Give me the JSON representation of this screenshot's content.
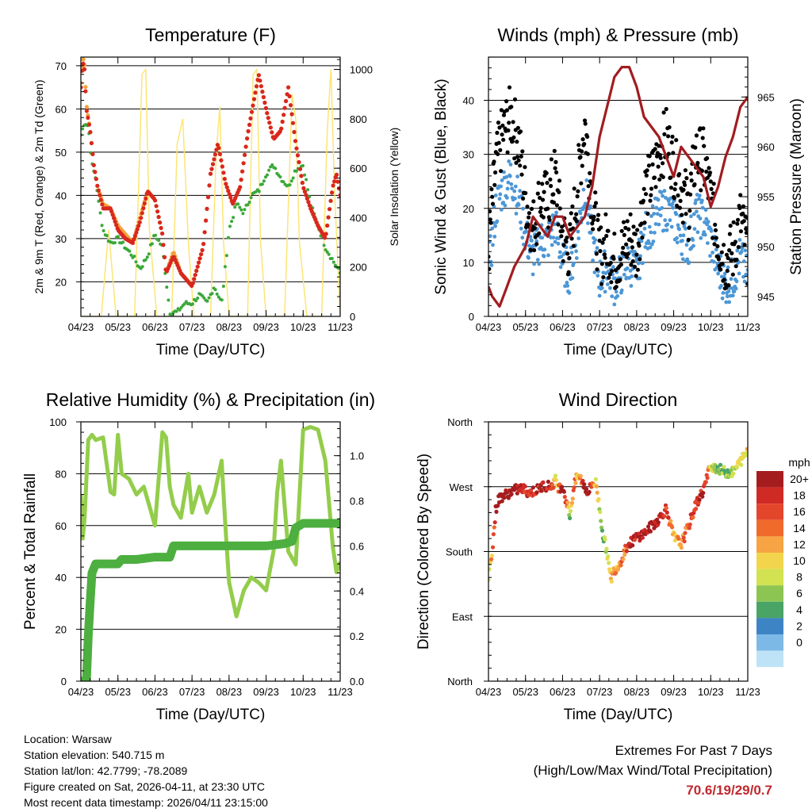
{
  "colors": {
    "red": "#d8281e",
    "orange": "#f2a23a",
    "green": "#3aa838",
    "yellow": "#fde575",
    "blue": "#4c97d6",
    "black": "#000000",
    "maroon": "#a11d21",
    "rh": "#93cd4b",
    "precip": "#4caf3f"
  },
  "info": {
    "location": "Location: Warsaw",
    "elevation": "Station elevation: 540.715 m",
    "latlon": "Station lat/lon: 42.7799; -78.2089",
    "created": "Figure created on Sat, 2026-04-11, at 23:30 UTC",
    "recent": "Most recent data timestamp: 2026/04/11 23:15:00"
  },
  "extremes": {
    "title": "Extremes For Past 7 Days",
    "subtitle": "(High/Low/Max Wind/Total Precipitation)",
    "values": "70.6/19/29/0.7"
  },
  "chart_data": [
    {
      "type": "line",
      "title": "Temperature (F)",
      "xlabel": "Time (Day/UTC)",
      "ylabel": "2m & 9m T (Red, Orange) & 2m Td (Green)",
      "ylabel_right": "Solar Insolation (Yellow)",
      "x_ticks": [
        "04/23",
        "05/23",
        "06/23",
        "07/23",
        "08/23",
        "09/23",
        "10/23",
        "11/23"
      ],
      "xlim": [
        0,
        7
      ],
      "ylim": [
        12,
        72
      ],
      "y_ticks": [
        "20",
        "30",
        "40",
        "50",
        "60",
        "70"
      ],
      "y_tick_values": [
        20,
        30,
        40,
        50,
        60,
        70
      ],
      "y2lim": [
        0,
        1050
      ],
      "y2_ticks": [
        "0",
        "200",
        "400",
        "600",
        "800",
        "1000"
      ],
      "y2_tick_values": [
        0,
        200,
        400,
        600,
        800,
        1000
      ],
      "series": [
        {
          "name": "2m T",
          "color": "red",
          "x": [
            0,
            0.05,
            0.1,
            0.15,
            0.25,
            0.35,
            0.45,
            0.6,
            0.8,
            1.0,
            1.2,
            1.4,
            1.6,
            1.8,
            2.0,
            2.2,
            2.3,
            2.5,
            2.7,
            3.0,
            3.3,
            3.5,
            3.7,
            3.9,
            4.1,
            4.3,
            4.5,
            4.8,
            5.0,
            5.2,
            5.4,
            5.6,
            5.8,
            6.0,
            6.2,
            6.4,
            6.6,
            6.8,
            6.9,
            7.0
          ],
          "y": [
            65,
            71,
            69,
            60,
            55,
            47,
            42,
            37,
            37,
            32,
            30,
            29,
            34,
            41,
            39,
            31,
            22,
            26,
            22,
            19,
            28,
            45,
            52,
            43,
            38,
            42,
            54,
            68,
            60,
            53,
            55,
            65,
            52,
            42,
            37,
            33,
            30,
            42,
            45,
            40
          ]
        },
        {
          "name": "9m T",
          "color": "orange",
          "x": [
            0,
            0.05,
            0.1,
            0.15,
            0.25,
            0.35,
            0.45,
            0.6,
            0.8,
            1.0,
            1.2,
            1.4,
            1.6,
            1.8,
            2.0,
            2.2,
            2.3,
            2.5,
            2.7,
            3.0,
            3.3,
            3.5,
            3.7,
            3.9,
            4.1,
            4.3,
            4.5,
            4.8,
            5.0,
            5.2,
            5.4,
            5.6,
            5.8,
            6.0,
            6.2,
            6.4,
            6.6,
            6.8,
            6.9,
            7.0
          ],
          "y": [
            66,
            72,
            70,
            61,
            55,
            47,
            42,
            38,
            37,
            33,
            31,
            29,
            35,
            41,
            39,
            31,
            22,
            27,
            22,
            19,
            28,
            45,
            52,
            43,
            38,
            42,
            54,
            68,
            60,
            53,
            55,
            65,
            52,
            42,
            37,
            33,
            30,
            42,
            45,
            40
          ]
        },
        {
          "name": "2m Td",
          "color": "green",
          "x": [
            0,
            0.1,
            0.2,
            0.3,
            0.4,
            0.5,
            0.6,
            0.8,
            1.0,
            1.2,
            1.4,
            1.6,
            1.8,
            2.0,
            2.2,
            2.4,
            2.6,
            2.8,
            3.0,
            3.2,
            3.4,
            3.6,
            3.8,
            4.0,
            4.2,
            4.4,
            4.6,
            4.8,
            5.0,
            5.2,
            5.4,
            5.6,
            5.8,
            6.0,
            6.2,
            6.4,
            6.6,
            6.8,
            7.0
          ],
          "y": [
            54,
            57,
            56,
            47,
            44,
            37,
            32,
            29,
            30,
            28,
            26,
            23,
            26,
            31,
            28,
            13,
            13,
            15,
            15,
            17,
            15,
            19,
            15,
            32,
            38,
            36,
            40,
            41,
            45,
            47,
            44,
            42,
            46,
            47,
            38,
            33,
            28,
            25,
            22
          ]
        },
        {
          "name": "Solar Insolation",
          "color": "yellow",
          "axis": "right",
          "x": [
            0,
            0.3,
            0.55,
            0.75,
            0.95,
            1.1,
            1.45,
            1.65,
            1.75,
            1.85,
            2.05,
            2.45,
            2.6,
            2.75,
            2.9,
            3.05,
            3.5,
            3.65,
            3.75,
            3.85,
            4.0,
            4.5,
            4.65,
            4.75,
            4.85,
            5.0,
            5.5,
            5.7,
            5.8,
            5.9,
            6.1,
            6.5,
            6.65,
            6.75,
            6.85,
            7.0
          ],
          "y": [
            0,
            0,
            0,
            350,
            0,
            0,
            0,
            980,
            1000,
            350,
            0,
            0,
            700,
            800,
            300,
            0,
            0,
            650,
            850,
            300,
            0,
            0,
            980,
            1000,
            300,
            0,
            0,
            900,
            800,
            300,
            0,
            0,
            750,
            1000,
            500,
            0
          ]
        }
      ]
    },
    {
      "type": "scatter",
      "title": "Winds (mph) & Pressure (mb)",
      "xlabel": "Time (Day/UTC)",
      "ylabel": "Sonic Wind & Gust (Blue, Black)",
      "ylabel_right": "Station Pressure (Maroon)",
      "x_ticks": [
        "04/23",
        "05/23",
        "06/23",
        "07/23",
        "08/23",
        "09/23",
        "10/23",
        "11/23"
      ],
      "xlim": [
        0,
        7
      ],
      "ylim": [
        0,
        48
      ],
      "y_ticks": [
        "0",
        "10",
        "20",
        "30",
        "40"
      ],
      "y_tick_values": [
        0,
        10,
        20,
        30,
        40
      ],
      "y2lim": [
        943,
        969
      ],
      "y2_ticks": [
        "945",
        "950",
        "955",
        "960",
        "965"
      ],
      "y2_tick_values": [
        945,
        950,
        955,
        960,
        965
      ],
      "series": [
        {
          "name": "Gust",
          "color": "black",
          "x": [
            0,
            0.2,
            0.4,
            0.6,
            0.8,
            1.0,
            1.2,
            1.4,
            1.6,
            1.8,
            2.0,
            2.2,
            2.4,
            2.6,
            2.8,
            3.0,
            3.2,
            3.4,
            3.6,
            3.8,
            4.0,
            4.2,
            4.4,
            4.6,
            4.8,
            5.0,
            5.2,
            5.4,
            5.6,
            5.8,
            6.0,
            6.2,
            6.4,
            6.6,
            6.8,
            7.0
          ],
          "y": [
            12,
            28,
            34,
            37,
            33,
            22,
            16,
            22,
            21,
            26,
            15,
            12,
            24,
            36,
            22,
            11,
            14,
            10,
            12,
            15,
            12,
            23,
            25,
            30,
            33,
            28,
            24,
            20,
            30,
            29,
            22,
            14,
            10,
            12,
            18,
            12
          ]
        },
        {
          "name": "Sonic Wind",
          "color": "blue",
          "x": [
            0,
            0.2,
            0.4,
            0.6,
            0.8,
            1.0,
            1.2,
            1.4,
            1.6,
            1.8,
            2.0,
            2.2,
            2.4,
            2.6,
            2.8,
            3.0,
            3.2,
            3.4,
            3.6,
            3.8,
            4.0,
            4.2,
            4.4,
            4.6,
            4.8,
            5.0,
            5.2,
            5.4,
            5.6,
            5.8,
            6.0,
            6.2,
            6.4,
            6.6,
            6.8,
            7.0
          ],
          "y": [
            8,
            20,
            24,
            26,
            22,
            15,
            11,
            14,
            14,
            17,
            10,
            8,
            15,
            24,
            14,
            7,
            9,
            6,
            8,
            10,
            8,
            15,
            17,
            19,
            20,
            18,
            15,
            13,
            19,
            18,
            14,
            9,
            6,
            7,
            11,
            7
          ]
        },
        {
          "name": "Station Pressure",
          "color": "maroon",
          "axis": "right",
          "x": [
            0,
            0.1,
            0.3,
            0.5,
            0.7,
            1.0,
            1.2,
            1.4,
            1.6,
            1.8,
            2.0,
            2.2,
            2.4,
            2.6,
            2.8,
            3.0,
            3.2,
            3.4,
            3.6,
            3.8,
            4.0,
            4.2,
            4.4,
            4.6,
            4.8,
            5.0,
            5.2,
            5.4,
            5.6,
            5.8,
            6.0,
            6.2,
            6.4,
            6.6,
            6.8,
            7.0
          ],
          "y": [
            946,
            945,
            944,
            946,
            948,
            950,
            953,
            952,
            951,
            953,
            953,
            951,
            952,
            953,
            956,
            961,
            964,
            967,
            968,
            968,
            966,
            963,
            962,
            961,
            959,
            957,
            960,
            959,
            958,
            957,
            954,
            956,
            959,
            961,
            964,
            965
          ]
        }
      ]
    },
    {
      "type": "line",
      "title": "Relative Humidity (%) & Precipitation (in)",
      "xlabel": "Time (Day/UTC)",
      "ylabel": "Percent & Total Rainfall",
      "x_ticks": [
        "04/23",
        "05/23",
        "06/23",
        "07/23",
        "08/23",
        "09/23",
        "10/23",
        "11/23"
      ],
      "xlim": [
        0,
        7
      ],
      "ylim": [
        0,
        100
      ],
      "y_ticks": [
        "0",
        "20",
        "40",
        "60",
        "80",
        "100"
      ],
      "y_tick_values": [
        0,
        20,
        40,
        60,
        80,
        100
      ],
      "y2lim": [
        0,
        1.15
      ],
      "y2_ticks": [
        "0.0",
        "0.2",
        "0.4",
        "0.6",
        "0.8",
        "1.0"
      ],
      "y2_tick_values": [
        0,
        0.2,
        0.4,
        0.6,
        0.8,
        1.0
      ],
      "series": [
        {
          "name": "Relative Humidity",
          "color": "rh",
          "x": [
            0,
            0.05,
            0.1,
            0.2,
            0.3,
            0.4,
            0.6,
            0.8,
            0.9,
            1.0,
            1.1,
            1.3,
            1.5,
            1.7,
            1.9,
            2.0,
            2.2,
            2.3,
            2.4,
            2.5,
            2.7,
            2.9,
            3.0,
            3.2,
            3.4,
            3.6,
            3.8,
            3.9,
            4.0,
            4.2,
            4.4,
            4.6,
            4.8,
            5.0,
            5.2,
            5.3,
            5.4,
            5.6,
            5.8,
            6.0,
            6.2,
            6.4,
            6.6,
            6.8,
            6.9,
            7.0
          ],
          "y": [
            72,
            55,
            63,
            93,
            95,
            93,
            94,
            73,
            72,
            95,
            80,
            78,
            72,
            75,
            65,
            60,
            96,
            94,
            75,
            68,
            63,
            80,
            65,
            75,
            65,
            72,
            85,
            60,
            38,
            25,
            35,
            40,
            38,
            35,
            50,
            73,
            85,
            50,
            45,
            97,
            98,
            97,
            85,
            52,
            42,
            46
          ]
        },
        {
          "name": "Precipitation",
          "color": "precip",
          "axis": "right",
          "x": [
            0,
            0.15,
            0.2,
            0.25,
            0.3,
            0.4,
            0.6,
            1.0,
            1.1,
            1.5,
            2.0,
            2.4,
            2.5,
            3.0,
            4.0,
            4.5,
            5.0,
            5.5,
            5.7,
            5.8,
            6.0,
            6.5,
            7.0
          ],
          "y": [
            0,
            0,
            0.2,
            0.35,
            0.48,
            0.52,
            0.52,
            0.52,
            0.54,
            0.54,
            0.55,
            0.55,
            0.6,
            0.6,
            0.6,
            0.6,
            0.6,
            0.61,
            0.62,
            0.68,
            0.7,
            0.7,
            0.7
          ]
        }
      ]
    },
    {
      "type": "scatter",
      "title": "Wind Direction",
      "xlabel": "Time (Day/UTC)",
      "ylabel": "Direction (Colored By Speed)",
      "x_ticks": [
        "04/23",
        "05/23",
        "06/23",
        "07/23",
        "08/23",
        "09/23",
        "10/23",
        "11/23"
      ],
      "xlim": [
        0,
        7
      ],
      "ylim": [
        0,
        360
      ],
      "y_ticks": [
        "North",
        "East",
        "South",
        "West",
        "North"
      ],
      "y_tick_values": [
        0,
        90,
        180,
        270,
        360
      ],
      "legend_title": "mph",
      "legend_labels": [
        "20+",
        "18",
        "16",
        "14",
        "12",
        "10",
        "8",
        "6",
        "4",
        "2",
        "0"
      ],
      "legend_colors": [
        "#a51c1f",
        "#cf2a26",
        "#e4462c",
        "#f06a2c",
        "#f6a444",
        "#f3d54d",
        "#d2e251",
        "#8dc553",
        "#49a466",
        "#3d84c4",
        "#7db9e6"
      ],
      "legend_last_color": "#bfe3f6",
      "series": [
        {
          "name": "Direction",
          "x": [
            0,
            0.05,
            0.1,
            0.2,
            0.3,
            0.5,
            0.7,
            0.9,
            1.1,
            1.3,
            1.5,
            1.7,
            1.8,
            1.9,
            2.0,
            2.1,
            2.2,
            2.3,
            2.4,
            2.5,
            2.6,
            2.7,
            2.8,
            2.9,
            3.0,
            3.1,
            3.2,
            3.3,
            3.4,
            3.5,
            3.6,
            3.7,
            3.8,
            3.9,
            4.0,
            4.2,
            4.4,
            4.6,
            4.8,
            5.0,
            5.2,
            5.4,
            5.6,
            5.8,
            6.0,
            6.2,
            6.4,
            6.6,
            6.8,
            7.0
          ],
          "y": [
            140,
            170,
            180,
            240,
            255,
            260,
            265,
            268,
            262,
            265,
            272,
            270,
            280,
            268,
            272,
            250,
            230,
            268,
            285,
            280,
            270,
            262,
            275,
            275,
            240,
            200,
            180,
            140,
            155,
            160,
            170,
            185,
            190,
            195,
            200,
            205,
            215,
            225,
            240,
            200,
            190,
            215,
            245,
            265,
            300,
            295,
            290,
            290,
            305,
            320
          ],
          "speed": [
            6,
            10,
            12,
            18,
            20,
            20,
            20,
            18,
            17,
            16,
            18,
            17,
            8,
            14,
            20,
            16,
            4,
            15,
            10,
            13,
            20,
            18,
            14,
            9,
            6,
            4,
            8,
            10,
            12,
            11,
            14,
            13,
            16,
            18,
            17,
            19,
            20,
            18,
            16,
            10,
            12,
            14,
            16,
            18,
            8,
            4,
            5,
            7,
            8,
            9
          ]
        }
      ]
    }
  ]
}
